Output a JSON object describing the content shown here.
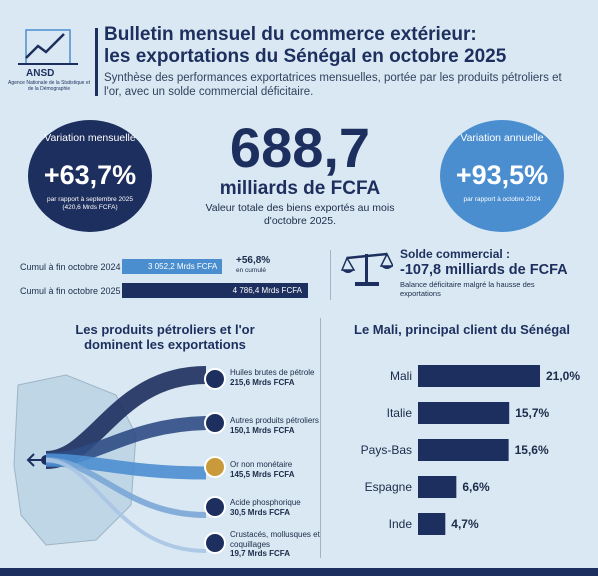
{
  "header": {
    "logo_name": "ANSD",
    "logo_sub": "Agence Nationale de la Statistique et de la Démographie",
    "title_line1": "Bulletin mensuel du commerce extérieur:",
    "title_line2": "les exportations du Sénégal en octobre 2025",
    "subtitle": "Synthèse des performances exportatrices mensuelles, portée par les produits pétroliers et l'or, avec un solde commercial déficitaire."
  },
  "monthly": {
    "label": "Variation mensuelle",
    "value": "+63,7%",
    "note": "par rapport à septembre 2025 (420,6 Mrds FCFA)"
  },
  "annual": {
    "label": "Variation annuelle",
    "value": "+93,5%",
    "note": "par rapport à octobre 2024"
  },
  "headline": {
    "value": "688,7",
    "unit": "milliards de FCFA",
    "desc": "Valeur totale des biens exportés au mois d'octobre 2025."
  },
  "cumul": {
    "row1_label": "Cumul à fin octobre 2024",
    "row1_value": "3 052,2 Mrds FCFA",
    "row2_label": "Cumul à fin octobre 2025",
    "row2_value": "4 786,4 Mrds FCFA",
    "growth": "+56,8%",
    "growth_note": "en cumulé"
  },
  "solde": {
    "title": "Solde commercial :",
    "value": "-107,8 milliards de FCFA",
    "note": "Balance déficitaire malgré la hausse des exportations"
  },
  "left_section": {
    "title_line1": "Les produits pétroliers et l'or",
    "title_line2": "dominent les exportations"
  },
  "products": [
    {
      "name": "Huiles brutes de pétrole",
      "value": "215,6 Mrds FCFA",
      "icon": "oil-rig-icon"
    },
    {
      "name": "Autres produits pétroliers",
      "value": "150,1 Mrds FCFA",
      "icon": "fuel-pump-icon"
    },
    {
      "name": "Or non monétaire",
      "value": "145,5 Mrds FCFA",
      "icon": "gold-bars-icon"
    },
    {
      "name": "Acide phosphorique",
      "value": "30,5 Mrds FCFA",
      "icon": "flask-icon"
    },
    {
      "name": "Crustacés, mollusques et coquillages",
      "value": "19,7 Mrds FCFA",
      "icon": "shell-icon"
    }
  ],
  "right_section": {
    "title": "Le Mali, principal client du Sénégal"
  },
  "chart_data": {
    "type": "bar",
    "orientation": "horizontal",
    "categories": [
      "Mali",
      "Italie",
      "Pays-Bas",
      "Espagne",
      "Inde"
    ],
    "values": [
      21.0,
      15.7,
      15.6,
      6.6,
      4.7
    ],
    "value_labels": [
      "21,0%",
      "15,7%",
      "15,6%",
      "6,6%",
      "4,7%"
    ],
    "title": "Le Mali, principal client du Sénégal",
    "xlim": [
      0,
      21
    ],
    "color": "#1d2f5e"
  },
  "colors": {
    "navy": "#1d2f5e",
    "blue": "#4b8ed0",
    "background": "#d9e8f2"
  }
}
